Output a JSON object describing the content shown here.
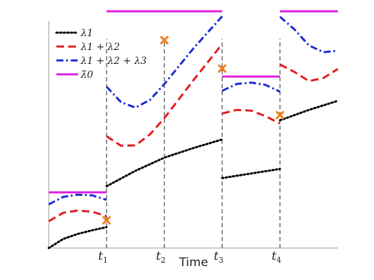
{
  "chart_data": {
    "type": "line",
    "title": "",
    "xlabel": "Time",
    "ylabel": "",
    "xlim": [
      0,
      5
    ],
    "ylim": [
      0,
      10
    ],
    "grid": false,
    "legend_placement": "top-left",
    "x_ticks": [
      {
        "x": 1,
        "main": "t",
        "sub": "1"
      },
      {
        "x": 2,
        "main": "t",
        "sub": "2"
      },
      {
        "x": 3,
        "main": "t",
        "sub": "3"
      },
      {
        "x": 4,
        "main": "t",
        "sub": "4"
      }
    ],
    "event_lines_x": [
      1,
      2,
      3,
      4
    ],
    "series": [
      {
        "name": "λ1",
        "color": "#000000",
        "style": "dotted",
        "segments": [
          [
            [
              0.0,
              0.0
            ],
            [
              0.25,
              0.4
            ],
            [
              0.5,
              0.62
            ],
            [
              0.75,
              0.78
            ],
            [
              1.0,
              0.92
            ]
          ],
          [
            [
              1.0,
              2.72
            ],
            [
              1.5,
              3.4
            ],
            [
              2.0,
              3.98
            ],
            [
              2.5,
              4.4
            ],
            [
              3.0,
              4.78
            ]
          ],
          [
            [
              3.0,
              3.08
            ],
            [
              3.5,
              3.28
            ],
            [
              4.0,
              3.48
            ]
          ],
          [
            [
              4.0,
              5.62
            ],
            [
              4.5,
              6.08
            ],
            [
              5.0,
              6.48
            ]
          ]
        ]
      },
      {
        "name": "λ1 + λ2",
        "color": "#e41a1c",
        "style": "dashed",
        "segments": [
          [
            [
              0.0,
              1.18
            ],
            [
              0.25,
              1.55
            ],
            [
              0.5,
              1.65
            ],
            [
              0.75,
              1.6
            ],
            [
              1.0,
              1.4
            ]
          ],
          [
            [
              1.0,
              4.92
            ],
            [
              1.25,
              4.5
            ],
            [
              1.5,
              4.52
            ],
            [
              1.75,
              5.0
            ],
            [
              2.0,
              5.72
            ],
            [
              2.5,
              7.38
            ],
            [
              3.0,
              8.98
            ]
          ],
          [
            [
              3.0,
              5.92
            ],
            [
              3.25,
              6.08
            ],
            [
              3.5,
              6.05
            ],
            [
              3.75,
              5.8
            ],
            [
              4.0,
              5.48
            ]
          ],
          [
            [
              4.0,
              8.08
            ],
            [
              4.25,
              7.75
            ],
            [
              4.5,
              7.35
            ],
            [
              4.75,
              7.48
            ],
            [
              5.0,
              7.88
            ]
          ]
        ]
      },
      {
        "name": "λ1 + λ2 + λ3",
        "color": "#1a2bd4",
        "style": "dashdot",
        "segments": [
          [
            [
              0.0,
              1.92
            ],
            [
              0.25,
              2.25
            ],
            [
              0.5,
              2.35
            ],
            [
              0.75,
              2.32
            ],
            [
              1.0,
              2.12
            ]
          ],
          [
            [
              1.0,
              7.1
            ],
            [
              1.25,
              6.42
            ],
            [
              1.5,
              6.18
            ],
            [
              1.75,
              6.52
            ],
            [
              2.0,
              7.22
            ],
            [
              2.5,
              8.78
            ],
            [
              3.0,
              10.2
            ]
          ],
          [
            [
              3.0,
              6.92
            ],
            [
              3.25,
              7.22
            ],
            [
              3.5,
              7.28
            ],
            [
              3.75,
              7.18
            ],
            [
              4.0,
              6.88
            ]
          ],
          [
            [
              4.0,
              10.18
            ],
            [
              4.25,
              9.62
            ],
            [
              4.5,
              8.92
            ],
            [
              4.75,
              8.62
            ],
            [
              5.0,
              8.68
            ]
          ]
        ]
      },
      {
        "name": "λ̄0",
        "color": "#e11ce1",
        "style": "solid",
        "segments": [
          [
            [
              0.0,
              2.45
            ],
            [
              1.0,
              2.45
            ]
          ],
          [
            [
              1.0,
              10.42
            ],
            [
              3.0,
              10.42
            ]
          ],
          [
            [
              3.0,
              7.55
            ],
            [
              4.0,
              7.55
            ]
          ],
          [
            [
              4.0,
              10.42
            ],
            [
              5.0,
              10.42
            ]
          ]
        ]
      }
    ],
    "markers": {
      "color": "#f07f1a",
      "shape": "x",
      "points": [
        [
          1.0,
          1.22
        ],
        [
          2.0,
          9.15
        ],
        [
          3.0,
          7.9
        ],
        [
          4.0,
          5.85
        ]
      ]
    }
  }
}
